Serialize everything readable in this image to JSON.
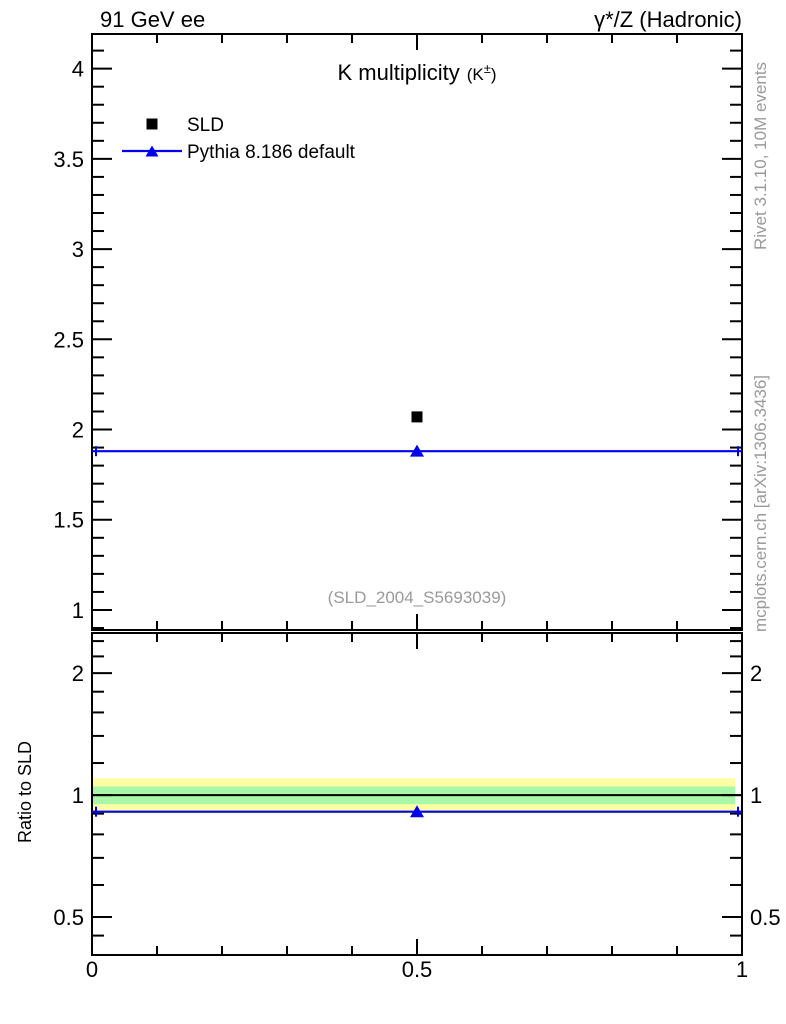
{
  "header": {
    "left": "91 GeV ee",
    "right": "γ*/Z (Hadronic)"
  },
  "title": {
    "main": "K multiplicity",
    "paren": "(K",
    "sup": "±",
    "close": ")"
  },
  "legend": [
    {
      "label": "SLD",
      "marker": "black-filled-square"
    },
    {
      "label": "Pythia 8.186 default",
      "marker": "blue-line-with-triangle"
    }
  ],
  "watermark": "(SLD_2004_S5693039)",
  "side_notes": {
    "top": "Rivet 3.1.10,  10M events",
    "bottom": "mcplots.cern.ch [arXiv:1306.3436]"
  },
  "colors": {
    "mc_blue": "#0000ee",
    "data_black": "#000000",
    "band_yellow": "#fdfda2",
    "band_green": "#a9f7a9",
    "gray_text": "#9a9a9a"
  },
  "chart_data": [
    {
      "type": "scatter",
      "panel": "main",
      "title": "K multiplicity (K±)",
      "x_range": [
        0,
        1
      ],
      "x_ticks": [
        0,
        0.5,
        1
      ],
      "x_tick_labels": [
        "0",
        "0.5",
        "1"
      ],
      "x_minor_step": 0.1,
      "y_range": [
        0.889,
        4.192
      ],
      "y_ticks": [
        1,
        1.5,
        2,
        2.5,
        3,
        3.5,
        4
      ],
      "y_tick_labels": [
        "1",
        "1.5",
        "2",
        "2.5",
        "3",
        "3.5",
        "4"
      ],
      "y_minor_step": 0.1,
      "grid": false,
      "legend_position": "top-left",
      "series": [
        {
          "name": "SLD",
          "type": "scatter",
          "marker": "square",
          "color": "#000000",
          "points": [
            {
              "x": 0.5,
              "y": 2.07
            }
          ]
        },
        {
          "name": "Pythia 8.186 default",
          "type": "line+marker",
          "marker": "triangle-up",
          "color": "#0000ee",
          "line_y": 1.88,
          "line_span": [
            0,
            1
          ],
          "marker_points": [
            {
              "x": 0.5,
              "y": 1.88
            }
          ]
        }
      ]
    },
    {
      "type": "ratio",
      "panel": "ratio",
      "ylabel": "Ratio to SLD",
      "y_scale": "log",
      "x_range": [
        0,
        1
      ],
      "x_ticks": [
        0,
        0.5,
        1
      ],
      "x_minor_step": 0.1,
      "y_range": [
        0.403,
        2.513
      ],
      "y_ticks": [
        0.5,
        1,
        2
      ],
      "y_tick_labels": [
        "0.5",
        "1",
        "2"
      ],
      "y_minor_ticks": [
        0.45,
        0.6,
        0.7,
        0.8,
        0.9,
        1.2,
        1.4,
        1.6,
        1.8,
        2.2,
        2.4
      ],
      "bands": [
        {
          "color": "#fdfda2",
          "range": [
            0.9,
            1.1
          ],
          "meaning": "10% band"
        },
        {
          "color": "#a9f7a9",
          "range": [
            0.95,
            1.05
          ],
          "meaning": "5% band"
        }
      ],
      "reference_line": {
        "y": 1.0,
        "color": "#000000"
      },
      "series": [
        {
          "name": "Pythia 8.186 default",
          "color": "#0000ee",
          "line_y": 0.91,
          "line_span": [
            0,
            1
          ],
          "marker": "triangle-up",
          "marker_points": [
            {
              "x": 0.5,
              "y": 0.91
            }
          ]
        }
      ]
    }
  ]
}
